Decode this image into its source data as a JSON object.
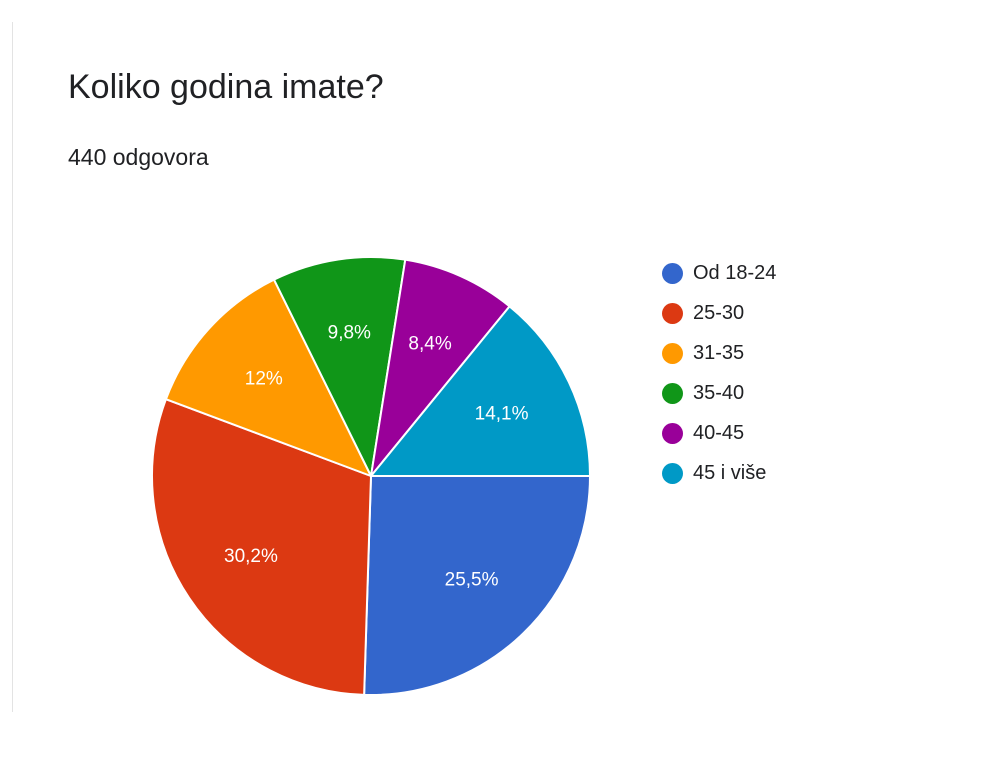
{
  "header": {
    "title": "Koliko godina imate?",
    "subtitle": "440 odgovora"
  },
  "chart_data": {
    "type": "pie",
    "title": "Koliko godina imate?",
    "subtitle": "440 odgovora",
    "legend_position": "right",
    "slices": [
      {
        "label": "Od 18-24",
        "value": 25.5,
        "display": "25,5%",
        "color": "#3366cc"
      },
      {
        "label": "25-30",
        "value": 30.2,
        "display": "30,2%",
        "color": "#dc3912"
      },
      {
        "label": "31-35",
        "value": 12.0,
        "display": "12%",
        "color": "#ff9900"
      },
      {
        "label": "35-40",
        "value": 9.8,
        "display": "9,8%",
        "color": "#109618"
      },
      {
        "label": "40-45",
        "value": 8.4,
        "display": "8,4%",
        "color": "#990099"
      },
      {
        "label": "45 i više",
        "value": 14.1,
        "display": "14,1%",
        "color": "#0099c6"
      }
    ]
  }
}
